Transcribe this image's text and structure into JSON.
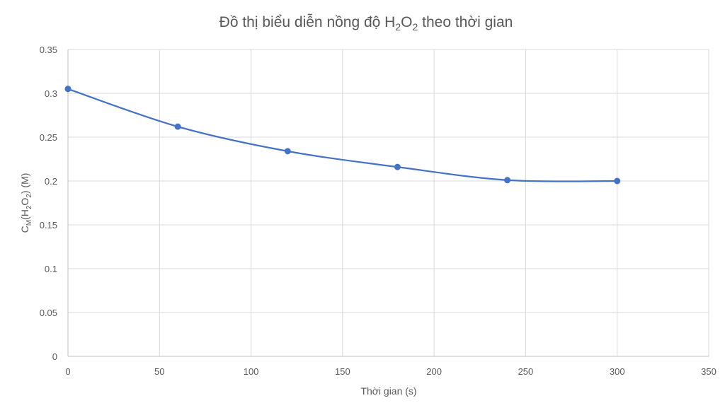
{
  "chart_data": {
    "type": "scatter",
    "smooth": true,
    "title": {
      "main": "Đồ thị biểu diễn nồng độ H",
      "sub1": "2",
      "mid": "O",
      "sub2": "2",
      "tail": " theo thời gian"
    },
    "xlabel": "Thời gian (s)",
    "ylabel": {
      "c": "C",
      "sub_m": "M",
      "open": "(H",
      "sub1": "2",
      "mid": "O",
      "sub2": "2",
      "close": ") (M)"
    },
    "xlim": [
      0,
      350
    ],
    "ylim": [
      0,
      0.35
    ],
    "x_ticks": [
      "0",
      "50",
      "100",
      "150",
      "200",
      "250",
      "300",
      "350"
    ],
    "y_ticks": [
      "0",
      "0.05",
      "0.1",
      "0.15",
      "0.2",
      "0.25",
      "0.3",
      "0.35"
    ],
    "grid": true,
    "legend": "none",
    "series": [
      {
        "color": "#4472c4",
        "x": [
          0,
          60,
          120,
          180,
          240,
          300
        ],
        "y": [
          0.305,
          0.262,
          0.234,
          0.216,
          0.201,
          0.2
        ]
      }
    ]
  }
}
